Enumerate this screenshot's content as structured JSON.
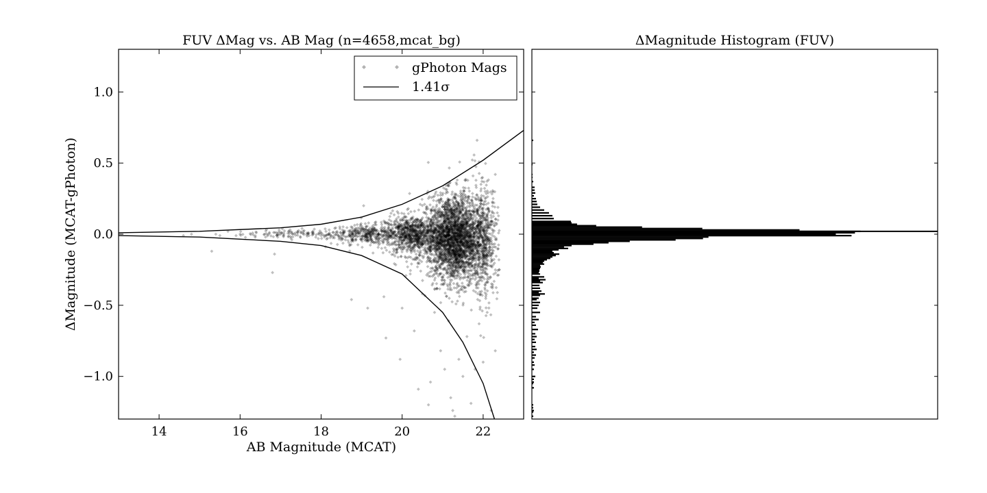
{
  "chart_data": [
    {
      "type": "scatter",
      "title": "FUV ΔMag vs. AB Mag (n=4658,mcat_bg)",
      "xlabel": "AB Magnitude (MCAT)",
      "ylabel": "ΔMagnitude (MCAT-gPhoton)",
      "xlim": [
        13,
        23
      ],
      "ylim": [
        -1.3,
        1.3
      ],
      "xticks": [
        14,
        16,
        18,
        20,
        22
      ],
      "yticks": [
        -1.0,
        -0.5,
        0.0,
        0.5,
        1.0
      ],
      "ytick_labels": [
        "−1.0",
        "−0.5",
        "0.0",
        "0.5",
        "1.0"
      ],
      "legend_position": "top-right",
      "legend": [
        {
          "label": "gPhoton Mags",
          "marker": "diamond",
          "color": "#000000"
        },
        {
          "label": "1.41σ",
          "marker": "line",
          "color": "#000000"
        }
      ],
      "series": [
        {
          "name": "gPhoton Mags",
          "color": "#000000",
          "opacity": 0.25,
          "points": [
            [
              14.6,
              -0.01
            ],
            [
              14.8,
              0.0
            ],
            [
              15.3,
              -0.12
            ],
            [
              15.4,
              0.0
            ],
            [
              15.5,
              -0.01
            ],
            [
              15.7,
              0.02
            ],
            [
              15.9,
              -0.01
            ],
            [
              16.0,
              0.0
            ],
            [
              16.4,
              0.01
            ],
            [
              16.6,
              0.0
            ],
            [
              16.8,
              -0.27
            ],
            [
              16.85,
              -0.14
            ],
            [
              16.9,
              0.01
            ],
            [
              17.0,
              0.0
            ],
            [
              17.2,
              0.02
            ],
            [
              17.3,
              0.0
            ],
            [
              17.5,
              0.01
            ],
            [
              17.7,
              -0.01
            ],
            [
              17.8,
              0.02
            ],
            [
              18.0,
              -0.01
            ],
            [
              18.2,
              0.03
            ],
            [
              18.4,
              0.01
            ],
            [
              18.6,
              -0.04
            ],
            [
              18.8,
              0.02
            ],
            [
              18.75,
              -0.46
            ],
            [
              19.0,
              0.04
            ],
            [
              19.05,
              0.2
            ],
            [
              19.15,
              -0.52
            ],
            [
              19.3,
              -0.06
            ],
            [
              19.5,
              0.05
            ],
            [
              19.55,
              -0.44
            ],
            [
              19.6,
              -0.73
            ],
            [
              19.8,
              -0.07
            ],
            [
              19.9,
              0.08
            ],
            [
              19.95,
              -0.88
            ],
            [
              20.0,
              -0.52
            ],
            [
              20.1,
              0.12
            ],
            [
              20.2,
              -0.28
            ],
            [
              20.3,
              -0.68
            ],
            [
              20.4,
              -1.09
            ],
            [
              20.5,
              -0.42
            ],
            [
              20.6,
              0.19
            ],
            [
              20.65,
              -1.2
            ],
            [
              20.7,
              -1.04
            ],
            [
              20.8,
              -0.55
            ],
            [
              20.9,
              0.24
            ],
            [
              20.95,
              -0.82
            ],
            [
              21.0,
              -0.35
            ],
            [
              21.05,
              -0.95
            ],
            [
              21.1,
              0.3
            ],
            [
              21.15,
              -0.61
            ],
            [
              21.2,
              -1.15
            ],
            [
              21.25,
              -1.24
            ],
            [
              21.3,
              -1.28
            ],
            [
              21.35,
              0.35
            ],
            [
              21.4,
              -0.88
            ],
            [
              21.5,
              -1.0
            ],
            [
              21.55,
              0.38
            ],
            [
              21.6,
              -0.72
            ],
            [
              21.7,
              -1.19
            ],
            [
              21.75,
              0.41
            ],
            [
              21.8,
              -0.95
            ],
            [
              21.85,
              0.66
            ],
            [
              21.9,
              -0.63
            ],
            [
              22.0,
              -0.9
            ],
            [
              22.05,
              0.3
            ],
            [
              22.1,
              -0.55
            ],
            [
              22.2,
              -1.24
            ],
            [
              22.3,
              0.42
            ],
            [
              22.35,
              0.15
            ],
            [
              22.4,
              -0.25
            ],
            [
              22.3,
              -0.82
            ]
          ],
          "dense_cloud": [
            {
              "x_center": 17.5,
              "x_spread": 1.2,
              "y_center": 0.0,
              "y_spread": 0.015,
              "count": 120
            },
            {
              "x_center": 19.2,
              "x_spread": 0.8,
              "y_center": 0.0,
              "y_spread": 0.035,
              "count": 380
            },
            {
              "x_center": 20.3,
              "x_spread": 0.6,
              "y_center": -0.01,
              "y_spread": 0.07,
              "count": 900
            },
            {
              "x_center": 21.3,
              "x_spread": 0.55,
              "y_center": -0.03,
              "y_spread": 0.15,
              "count": 2600
            },
            {
              "x_center": 22.0,
              "x_spread": 0.3,
              "y_center": -0.05,
              "y_spread": 0.2,
              "count": 560
            }
          ]
        },
        {
          "name": "1.41σ",
          "type": "line",
          "color": "#000000",
          "upper": [
            [
              13.0,
              0.01
            ],
            [
              15.0,
              0.02
            ],
            [
              17.0,
              0.045
            ],
            [
              18.0,
              0.07
            ],
            [
              19.0,
              0.12
            ],
            [
              20.0,
              0.21
            ],
            [
              21.0,
              0.34
            ],
            [
              22.0,
              0.52
            ],
            [
              23.0,
              0.73
            ]
          ],
          "lower": [
            [
              13.0,
              -0.01
            ],
            [
              15.0,
              -0.02
            ],
            [
              17.0,
              -0.05
            ],
            [
              18.0,
              -0.08
            ],
            [
              19.0,
              -0.15
            ],
            [
              20.0,
              -0.28
            ],
            [
              21.0,
              -0.55
            ],
            [
              21.5,
              -0.76
            ],
            [
              22.0,
              -1.05
            ],
            [
              22.28,
              -1.3
            ]
          ]
        }
      ]
    },
    {
      "type": "bar",
      "orientation": "horizontal",
      "title": "ΔMagnitude Histogram (FUV)",
      "ylim": [
        -1.3,
        1.3
      ],
      "bin_width": 0.01,
      "bins": [
        [
          0.66,
          2
        ],
        [
          0.49,
          1
        ],
        [
          0.42,
          1
        ],
        [
          0.4,
          1
        ],
        [
          0.37,
          2
        ],
        [
          0.33,
          4
        ],
        [
          0.31,
          4
        ],
        [
          0.29,
          5
        ],
        [
          0.27,
          3
        ],
        [
          0.25,
          6
        ],
        [
          0.23,
          7
        ],
        [
          0.21,
          8
        ],
        [
          0.19,
          12
        ],
        [
          0.17,
          18
        ],
        [
          0.15,
          25
        ],
        [
          0.13,
          30
        ],
        [
          0.11,
          32
        ],
        [
          0.09,
          57
        ],
        [
          0.08,
          58
        ],
        [
          0.07,
          66
        ],
        [
          0.06,
          94
        ],
        [
          0.05,
          161
        ],
        [
          0.04,
          249
        ],
        [
          0.03,
          391
        ],
        [
          0.02,
          480
        ],
        [
          0.01,
          472
        ],
        [
          0.0,
          444
        ],
        [
          -0.01,
          467
        ],
        [
          -0.02,
          258
        ],
        [
          -0.03,
          250
        ],
        [
          -0.04,
          210
        ],
        [
          -0.05,
          143
        ],
        [
          -0.06,
          112
        ],
        [
          -0.07,
          90
        ],
        [
          -0.08,
          58
        ],
        [
          -0.09,
          47
        ],
        [
          -0.1,
          53
        ],
        [
          -0.11,
          39
        ],
        [
          -0.12,
          30
        ],
        [
          -0.13,
          32
        ],
        [
          -0.14,
          40
        ],
        [
          -0.15,
          35
        ],
        [
          -0.16,
          30
        ],
        [
          -0.17,
          27
        ],
        [
          -0.18,
          22
        ],
        [
          -0.19,
          18
        ],
        [
          -0.2,
          16
        ],
        [
          -0.21,
          18
        ],
        [
          -0.22,
          12
        ],
        [
          -0.23,
          13
        ],
        [
          -0.24,
          12
        ],
        [
          -0.25,
          11
        ],
        [
          -0.26,
          11
        ],
        [
          -0.27,
          10
        ],
        [
          -0.28,
          12
        ],
        [
          -0.3,
          18
        ],
        [
          -0.31,
          10
        ],
        [
          -0.32,
          20
        ],
        [
          -0.33,
          12
        ],
        [
          -0.34,
          16
        ],
        [
          -0.36,
          11
        ],
        [
          -0.38,
          12
        ],
        [
          -0.4,
          14
        ],
        [
          -0.4,
          10
        ],
        [
          -0.41,
          10
        ],
        [
          -0.42,
          19
        ],
        [
          -0.43,
          12
        ],
        [
          -0.45,
          10
        ],
        [
          -0.46,
          7
        ],
        [
          -0.48,
          12
        ],
        [
          -0.5,
          10
        ],
        [
          -0.52,
          8
        ],
        [
          -0.55,
          12
        ],
        [
          -0.58,
          6
        ],
        [
          -0.6,
          10
        ],
        [
          -0.62,
          4
        ],
        [
          -0.64,
          6
        ],
        [
          -0.67,
          9
        ],
        [
          -0.7,
          5
        ],
        [
          -0.72,
          7
        ],
        [
          -0.74,
          4
        ],
        [
          -0.76,
          6
        ],
        [
          -0.79,
          5
        ],
        [
          -0.81,
          7
        ],
        [
          -0.83,
          3
        ],
        [
          -0.85,
          6
        ],
        [
          -0.87,
          4
        ],
        [
          -0.9,
          3
        ],
        [
          -0.92,
          4
        ],
        [
          -0.95,
          3
        ],
        [
          -1.0,
          5
        ],
        [
          -1.02,
          3
        ],
        [
          -1.04,
          3
        ],
        [
          -1.05,
          2
        ],
        [
          -1.08,
          3
        ],
        [
          -1.2,
          2
        ],
        [
          -1.22,
          2
        ],
        [
          -1.24,
          3
        ],
        [
          -1.25,
          2
        ],
        [
          -1.28,
          2
        ]
      ]
    }
  ]
}
